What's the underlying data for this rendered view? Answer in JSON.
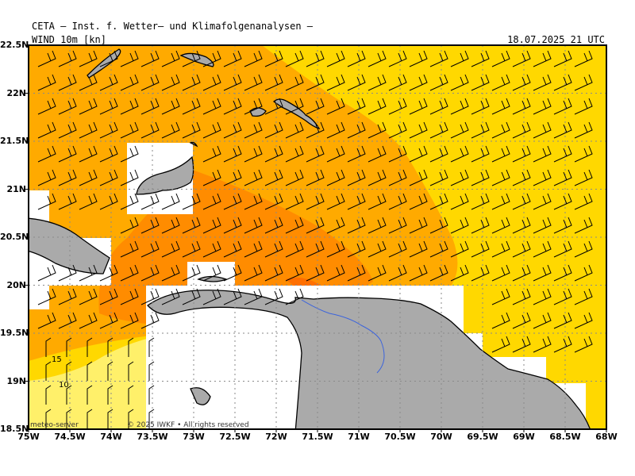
{
  "header": {
    "title": "CETA — Inst. f. Wetter— und Klimafolgenanalysen —",
    "subtitle": "WIND 10m [kn]",
    "timestamp": "18.07.2025 21 UTC"
  },
  "map": {
    "lat_labels": [
      "22.5N",
      "22N",
      "21.5N",
      "21N",
      "20.5N",
      "20N",
      "19.5N",
      "19N",
      "18.5N"
    ],
    "lon_labels": [
      "75W",
      "74.5W",
      "74W",
      "73.5W",
      "73W",
      "72.5W",
      "72W",
      "71.5W",
      "71W",
      "70.5W",
      "70W",
      "69.5W",
      "69W",
      "68.5W",
      "68W"
    ],
    "contour_labels": [
      "15",
      "10"
    ],
    "watermark": "meteo-server",
    "copyright": "© 2025 IWKF • All rights reserved",
    "colors": {
      "wind_5_10": "#fff06a",
      "wind_10_15": "#ffd800",
      "wind_15_20": "#ffaa00",
      "wind_20_25": "#ff8c00",
      "wind_25_30": "#ff6f00",
      "land": "#aaaaaa",
      "river": "#3c64dc",
      "grid": "#8a8a8a"
    }
  }
}
